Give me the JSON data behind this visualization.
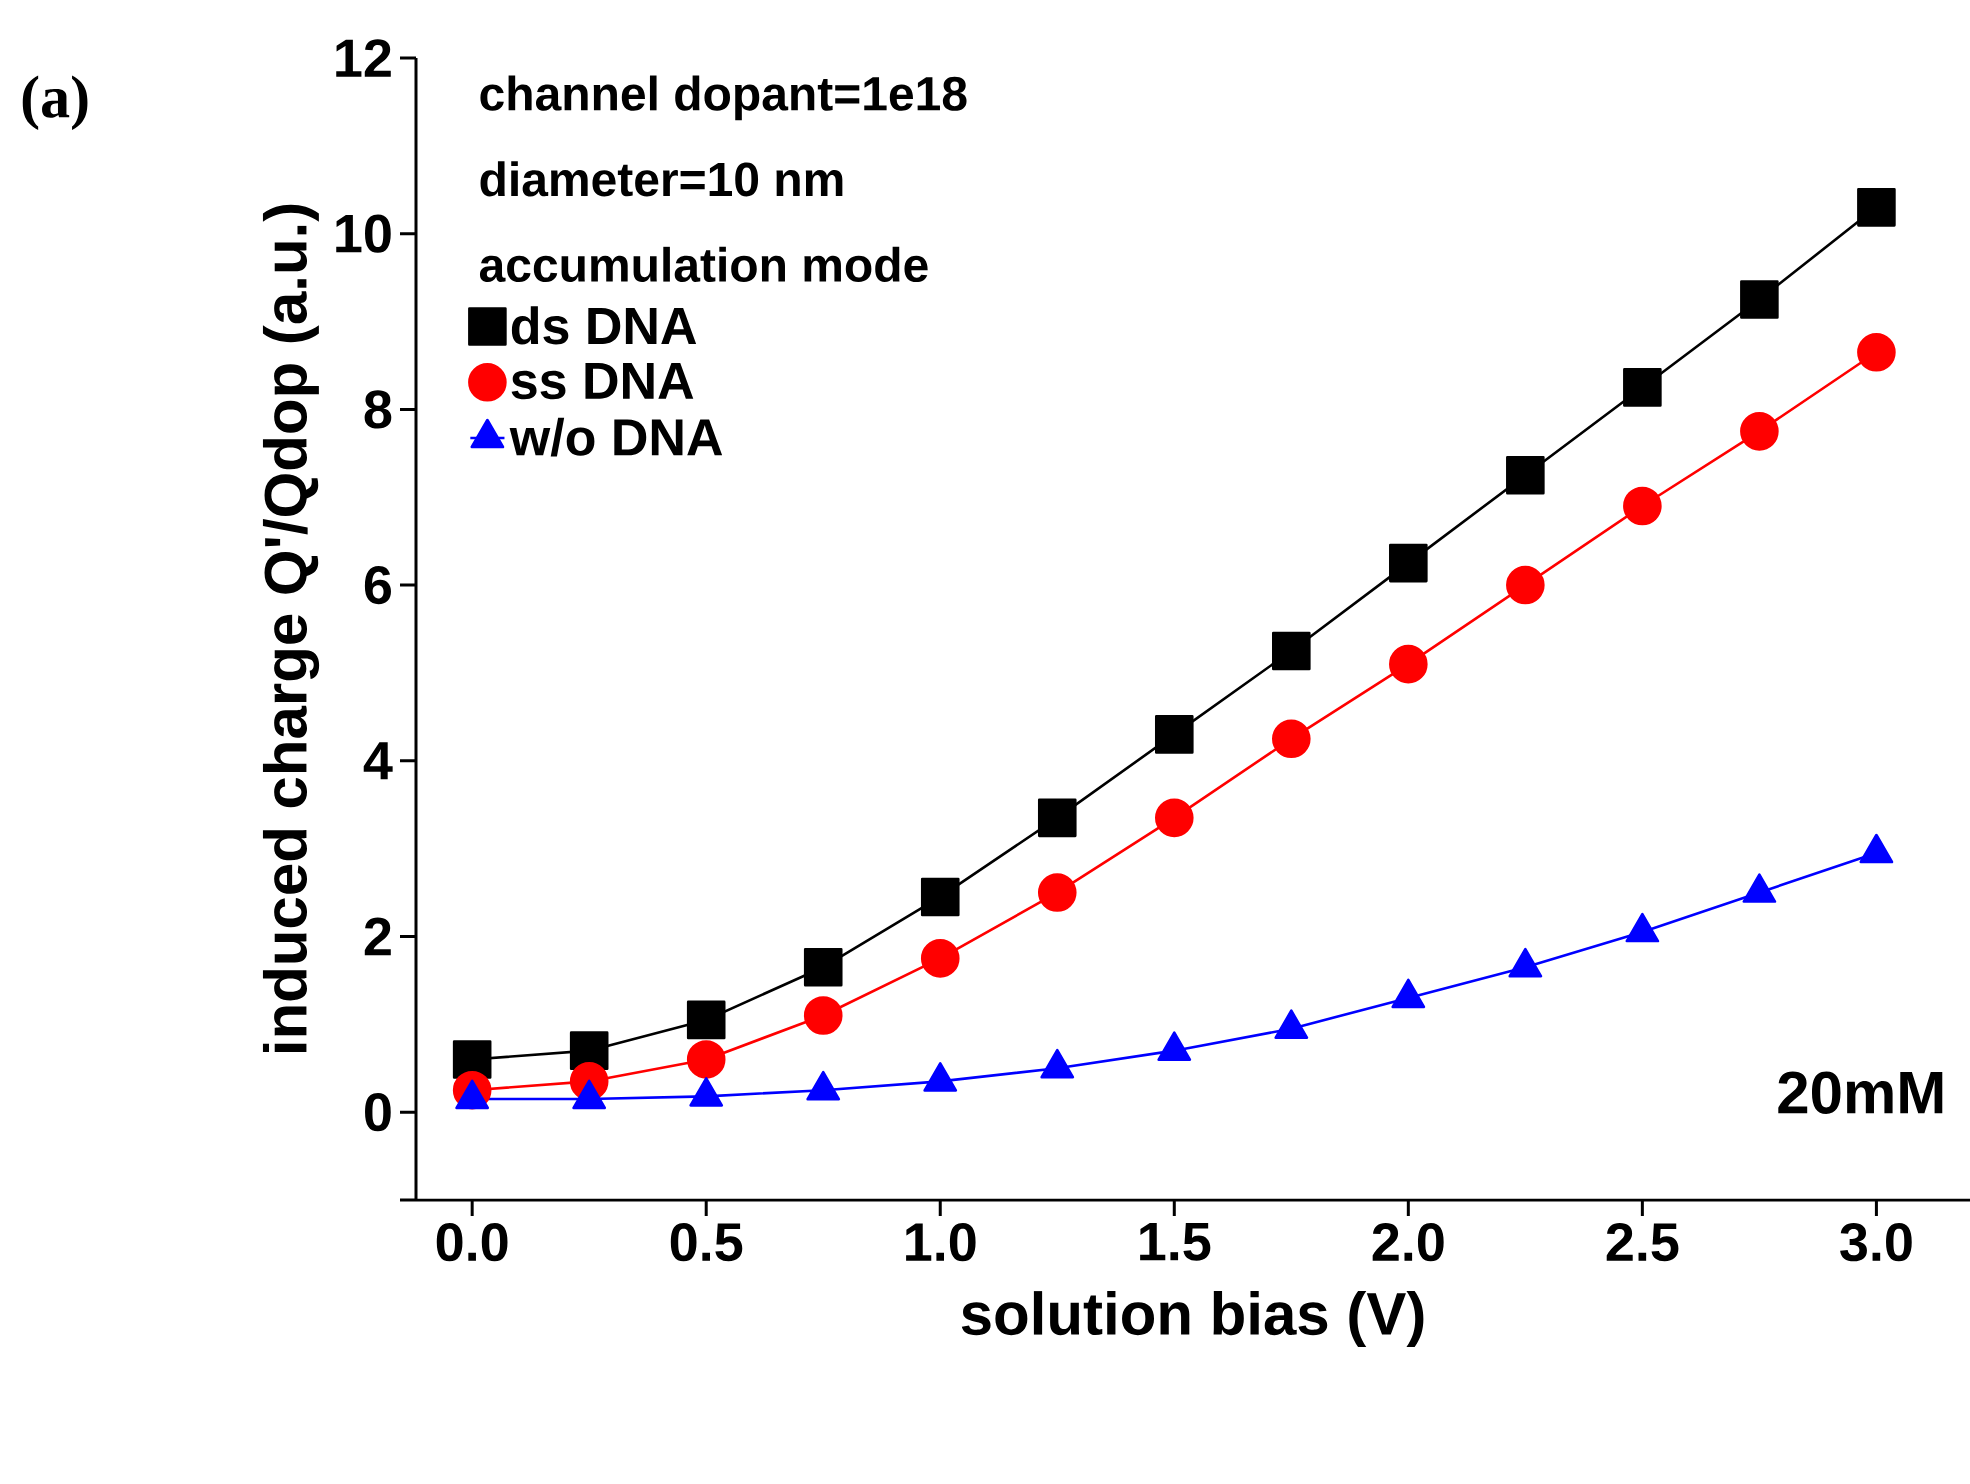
{
  "chart_data": {
    "type": "line",
    "xlabel": "solution bias (V)",
    "ylabel": "induced charge Q'/Qdop (a.u.)",
    "x": [
      0,
      0.25,
      0.5,
      0.75,
      1.0,
      1.25,
      1.5,
      1.75,
      2.0,
      2.25,
      2.5,
      2.75,
      3.0
    ],
    "series": [
      {
        "name": "ds DNA",
        "color": "#000000",
        "marker": "square",
        "values": [
          0.6,
          0.7,
          1.05,
          1.65,
          2.45,
          3.35,
          4.3,
          5.25,
          6.25,
          7.25,
          8.25,
          9.25,
          10.3
        ]
      },
      {
        "name": "ss DNA",
        "color": "#ff0000",
        "marker": "circle",
        "values": [
          0.25,
          0.35,
          0.6,
          1.1,
          1.75,
          2.5,
          3.35,
          4.25,
          5.1,
          6.0,
          6.9,
          7.75,
          8.65
        ]
      },
      {
        "name": "w/o DNA",
        "color": "#0000ff",
        "marker": "triangle",
        "values": [
          0.15,
          0.15,
          0.18,
          0.25,
          0.35,
          0.5,
          0.7,
          0.95,
          1.3,
          1.65,
          2.05,
          2.5,
          2.95
        ]
      }
    ],
    "xlim": [
      -0.12,
      3.2
    ],
    "ylim": [
      -1,
      12
    ],
    "xticks": [
      {
        "value": 0,
        "label": "0.0"
      },
      {
        "value": 0.5,
        "label": "0.5"
      },
      {
        "value": 1,
        "label": "1.0"
      },
      {
        "value": 1.5,
        "label": "1.5"
      },
      {
        "value": 2,
        "label": "2.0"
      },
      {
        "value": 2.5,
        "label": "2.5"
      },
      {
        "value": 3,
        "label": "3.0"
      }
    ],
    "yticks": [
      {
        "value": -1,
        "label": null
      },
      0,
      2,
      4,
      6,
      8,
      10,
      12
    ],
    "grid": false,
    "legend": "top left",
    "line_style": "solid",
    "annotations": [
      "(a)",
      "channel dopant=1e18",
      "diameter=10 nm",
      "accumulation mode",
      "20mM"
    ]
  }
}
